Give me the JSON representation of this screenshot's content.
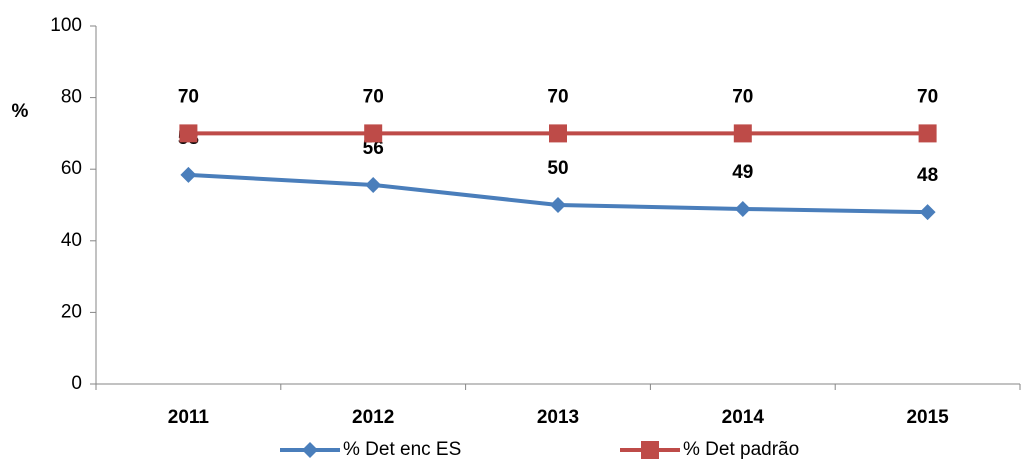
{
  "chart_data": {
    "type": "line",
    "y_label": "%",
    "categories": [
      "2011",
      "2012",
      "2013",
      "2014",
      "2015"
    ],
    "series": [
      {
        "name": "% Det enc ES",
        "color": "#4a7ebb",
        "values": [
          58.4,
          55.6,
          50,
          48.9,
          48
        ],
        "value_labels": [
          "58",
          "56",
          "50",
          "49",
          "48"
        ],
        "marker": "diamond"
      },
      {
        "name": "% Det padrão",
        "color": "#be4b48",
        "values": [
          70,
          70,
          70,
          70,
          70
        ],
        "marker": "square"
      }
    ],
    "ylim": [
      0,
      100
    ],
    "yticks": [
      0,
      20,
      40,
      60,
      80,
      100
    ],
    "grid": false,
    "legend": "bottom"
  }
}
